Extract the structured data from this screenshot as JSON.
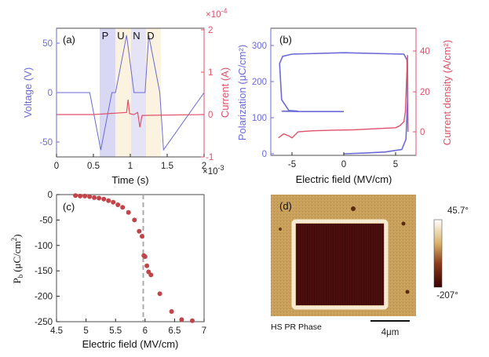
{
  "chart_data": [
    {
      "panel_label": "(a)",
      "type": "line",
      "xlabel": "Time (s)",
      "x_multiplier": "×10",
      "x_multiplier_exp": "-3",
      "xlim": [
        0,
        2
      ],
      "xticks": [
        "0",
        "0.5",
        "1",
        "1.5",
        "2"
      ],
      "ylabel_left": "Voltage (V)",
      "ylim_left": [
        -65,
        65
      ],
      "yticks_left": [
        "50",
        "0",
        "-50"
      ],
      "ylabel_right": "Current (A)",
      "y_multiplier": "×10",
      "y_multiplier_exp": "-4",
      "ylim_right": [
        -1,
        2
      ],
      "yticks_right": [
        "2",
        "1",
        "0",
        "-1"
      ],
      "pulse_labels": [
        "P",
        "U",
        "N",
        "D"
      ],
      "series": [
        {
          "name": "Voltage",
          "axis": "left",
          "color": "#6b6bd6",
          "x": [
            0,
            0.45,
            0.6,
            0.75,
            0.8,
            0.95,
            1.05,
            1.2,
            1.25,
            1.4,
            1.45,
            2.0
          ],
          "y": [
            0,
            0,
            -58,
            0,
            0,
            58,
            0,
            0,
            58,
            0,
            -58,
            0
          ]
        },
        {
          "name": "Current",
          "axis": "right",
          "color": "#e0506a",
          "x": [
            0,
            0.5,
            0.95,
            0.97,
            0.99,
            1.05,
            1.1,
            1.13,
            1.16,
            2.0
          ],
          "y": [
            0,
            0,
            0.05,
            0.35,
            0.02,
            0,
            0.05,
            -0.3,
            -0.02,
            0
          ]
        }
      ],
      "shaded_regions": [
        {
          "x": [
            0.58,
            0.8
          ],
          "color": "#d8d8f4"
        },
        {
          "x": [
            0.8,
            1.0
          ],
          "color": "#fbf2df"
        },
        {
          "x": [
            1.0,
            1.2
          ],
          "color": "#e4e4f6"
        },
        {
          "x": [
            1.2,
            1.4
          ],
          "color": "#fbf2df"
        }
      ]
    },
    {
      "panel_label": "(b)",
      "type": "line",
      "xlabel": "Electric field (MV/cm)",
      "xlim": [
        -7,
        7
      ],
      "xticks": [
        "-5",
        "0",
        "5"
      ],
      "ylabel_left": "Polarization (μC/cm²)",
      "ylim_left": [
        0,
        320
      ],
      "yticks_left": [
        "300",
        "200",
        "100",
        "0"
      ],
      "ylabel_right": "Current density (A/cm²)",
      "ylim_right": [
        -8,
        48
      ],
      "yticks_right": [
        "40",
        "20",
        "0"
      ],
      "series": [
        {
          "name": "Polarization",
          "axis": "left",
          "color": "#6b6bd6",
          "x": [
            0,
            2,
            4,
            5.6,
            6.0,
            6.15,
            6.1,
            5.8,
            0,
            -5,
            -5.9,
            -6.2,
            -6.0,
            -5.3,
            -4.4,
            -5.2,
            -6.0,
            -4,
            0
          ],
          "y": [
            0,
            2,
            5,
            12,
            40,
            150,
            260,
            276,
            280,
            276,
            270,
            250,
            150,
            120,
            118,
            118,
            118,
            117,
            117
          ]
        },
        {
          "name": "Current density",
          "axis": "right",
          "color": "#e0506a",
          "x": [
            -6.3,
            -5.8,
            -5.3,
            -5.0,
            -4.4,
            -3,
            -1,
            1,
            3,
            5,
            5.4,
            5.8,
            5.95,
            6.05,
            6.15,
            6.2
          ],
          "y": [
            -3,
            -1,
            -2,
            -3,
            0,
            0.5,
            0.8,
            1,
            1.5,
            2,
            3,
            5,
            10,
            25,
            38,
            0
          ]
        }
      ]
    },
    {
      "panel_label": "(c)",
      "type": "scatter",
      "xlabel": "Electric field (MV/cm)",
      "ylabel": "P_b (μC/cm²)",
      "ylabel_main": "P",
      "ylabel_sub": "b",
      "ylabel_rest": "(μC/cm",
      "ylabel_sup": "2",
      "ylabel_close": ")",
      "xlim": [
        4.5,
        7
      ],
      "ylim": [
        -250,
        0
      ],
      "xticks": [
        "4.5",
        "5",
        "5.5",
        "6",
        "6.5",
        "7"
      ],
      "yticks": [
        "0",
        "-50",
        "-100",
        "-150",
        "-200",
        "-250"
      ],
      "color": "#c0444a",
      "threshold_x": 5.97,
      "x": [
        4.82,
        4.9,
        4.98,
        5.06,
        5.14,
        5.22,
        5.3,
        5.38,
        5.46,
        5.54,
        5.62,
        5.72,
        5.82,
        5.9,
        5.95,
        5.98,
        6.0,
        6.03,
        6.06,
        6.1,
        6.25,
        6.45,
        6.62,
        6.8
      ],
      "y": [
        -2,
        -3,
        -3,
        -4,
        -6,
        -7,
        -9,
        -12,
        -15,
        -20,
        -25,
        -35,
        -50,
        -72,
        -82,
        -120,
        -122,
        -140,
        -152,
        -158,
        -195,
        -230,
        -246,
        -248
      ]
    }
  ],
  "image_panel": {
    "panel_label": "(d)",
    "caption": "HS PR Phase",
    "scalebar_label": "4μm",
    "colorbar_max": "45.7°",
    "colorbar_min": "-207°",
    "colors": {
      "background": "#c9a05c",
      "domain": "#4a0e0e",
      "edge": "#f6ead2"
    }
  }
}
